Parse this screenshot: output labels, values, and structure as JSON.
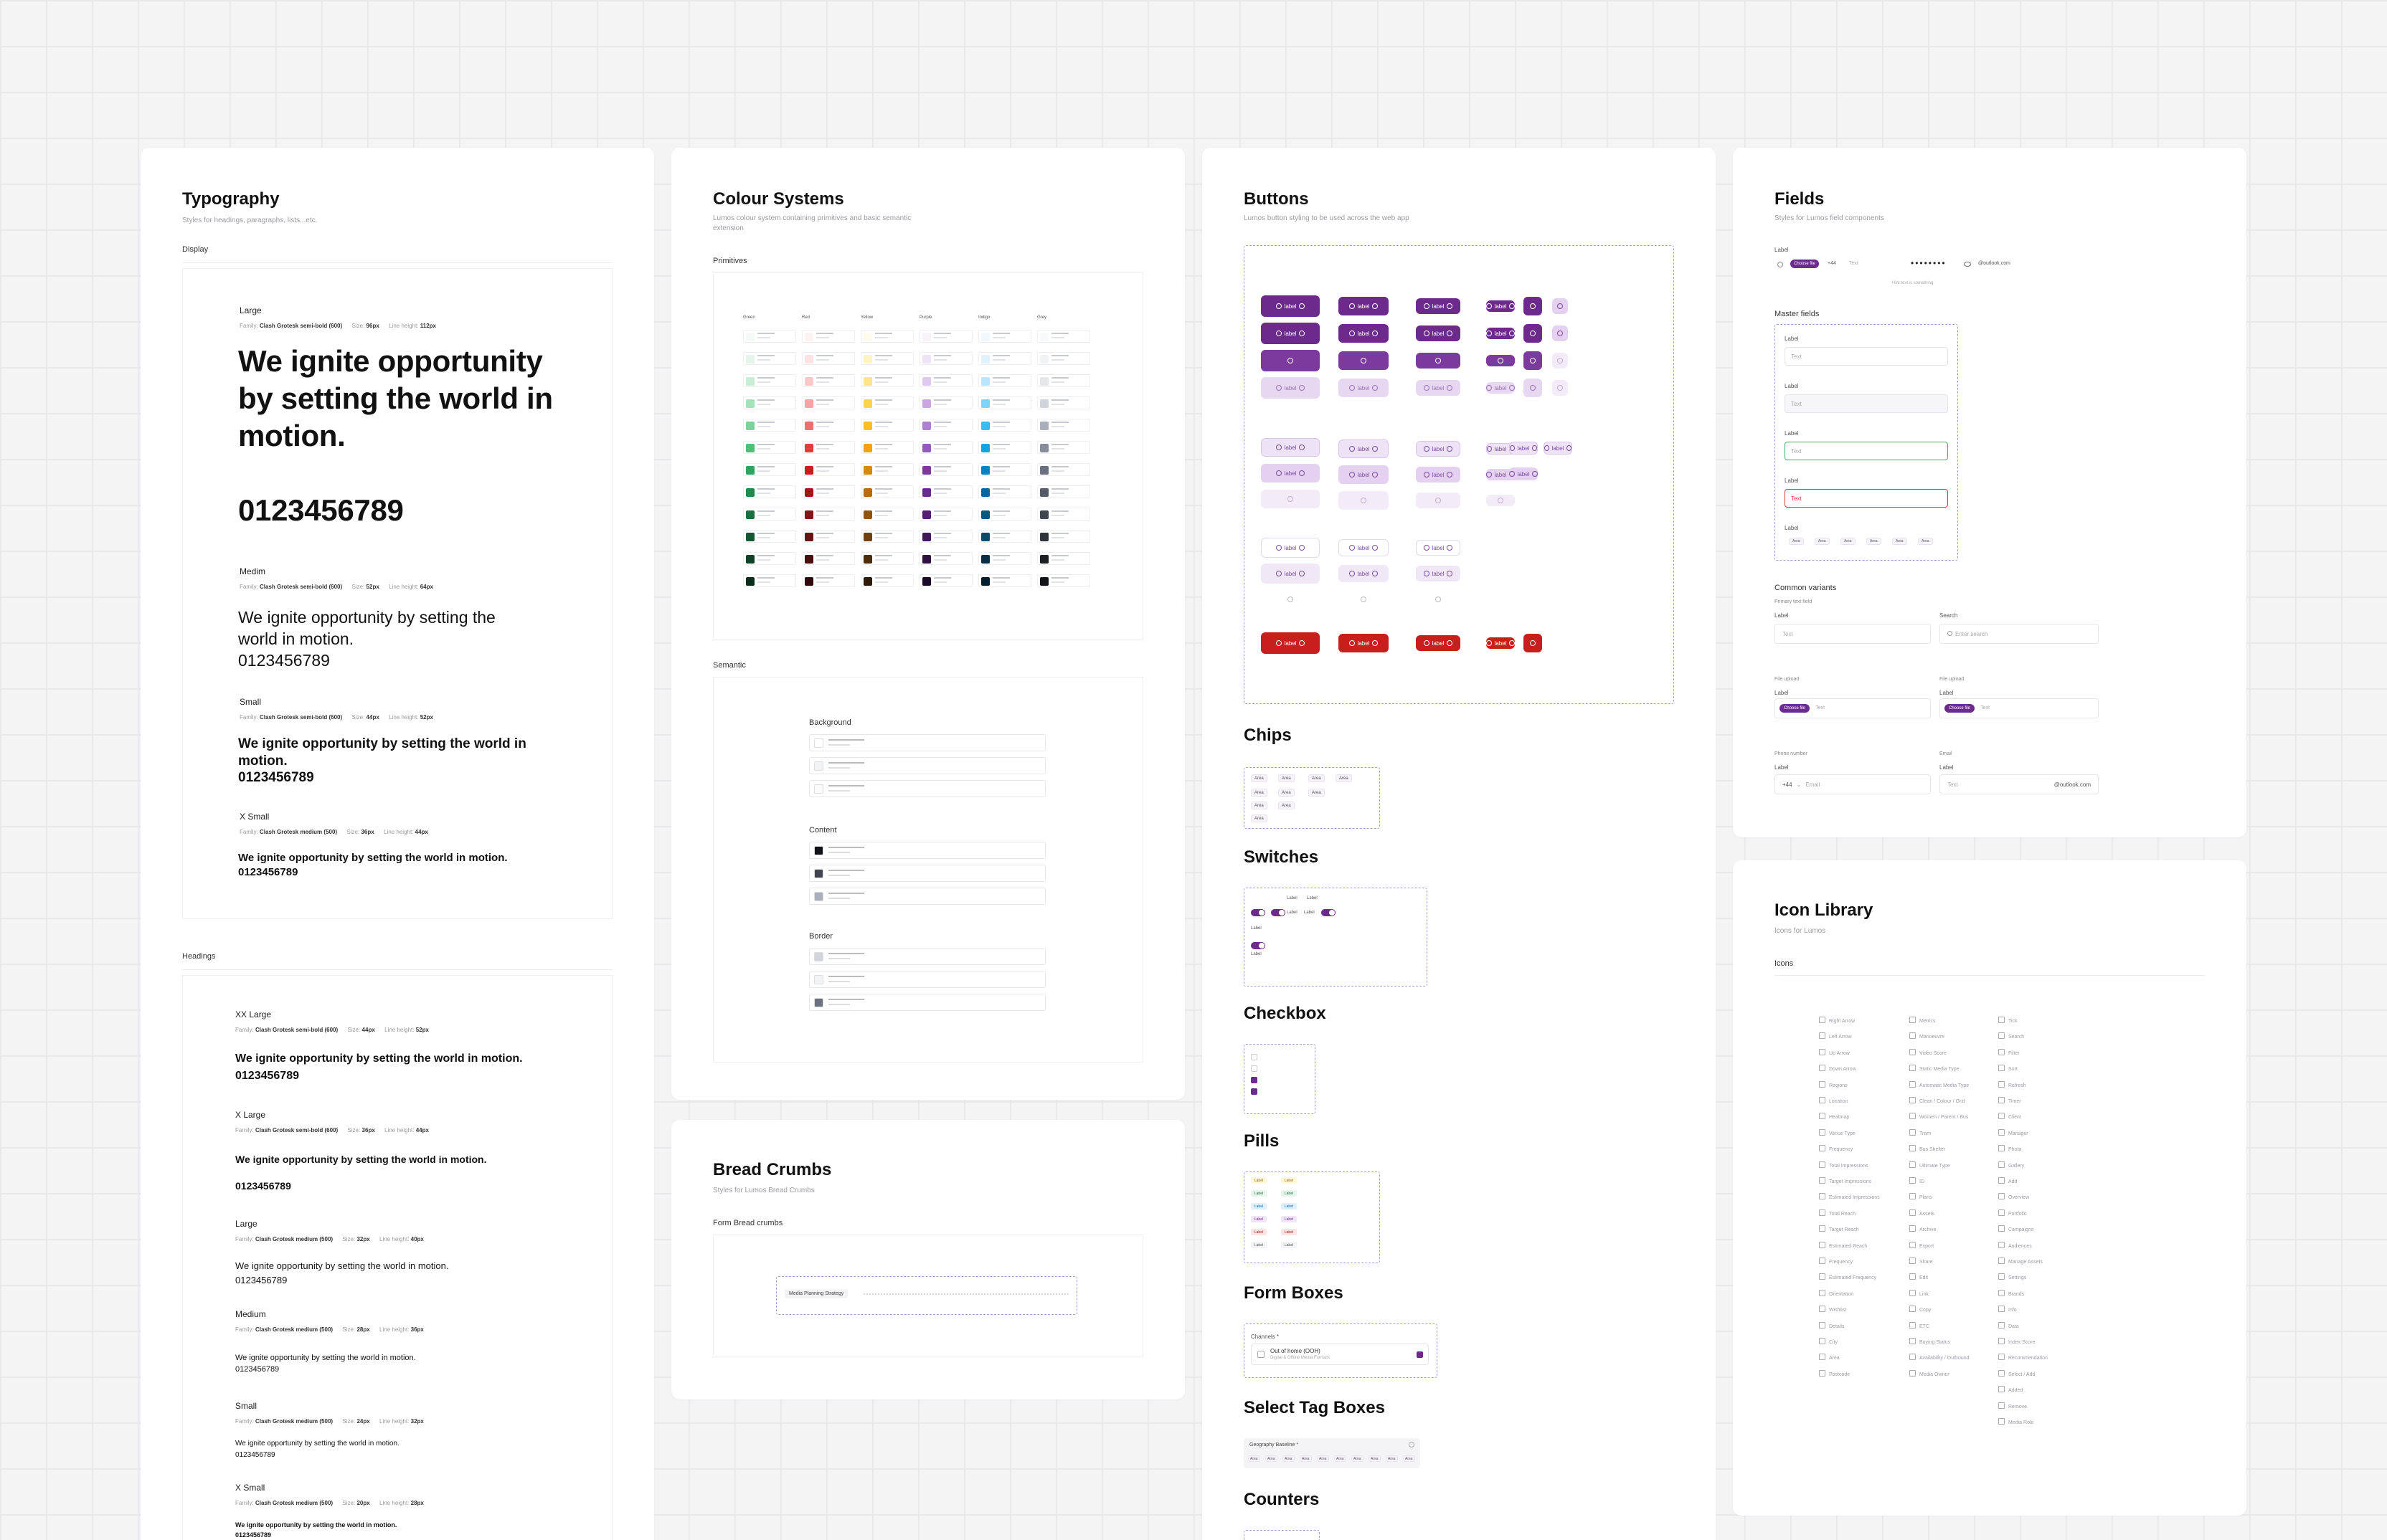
{
  "typography": {
    "title": "Typography",
    "subtitle": "Styles for headings, paragraphs, lists...etc.",
    "display_label": "Display",
    "headings_label": "Headings",
    "display": [
      {
        "name": "Large",
        "family": "Clash Grotesk semi-bold (600)",
        "size": "96px",
        "line": "112px",
        "sample": "We ignite opportunity by setting the world in motion.",
        "digits": "0123456789"
      },
      {
        "name": "Medim",
        "family": "Clash Grotesk semi-bold (600)",
        "size": "52px",
        "line": "64px",
        "sample": "We ignite opportunity by setting the world in motion.",
        "digits": "0123456789"
      },
      {
        "name": "Small",
        "family": "Clash Grotesk semi-bold (600)",
        "size": "44px",
        "line": "52px",
        "sample": "We ignite opportunity by setting the world in motion.",
        "digits": "0123456789"
      },
      {
        "name": "X Small",
        "family": "Clash Grotesk medium (500)",
        "size": "36px",
        "line": "44px",
        "sample": "We ignite opportunity by setting the world in motion.",
        "digits": "0123456789"
      }
    ],
    "headings": [
      {
        "name": "XX Large",
        "family": "Clash Grotesk semi-bold (600)",
        "size": "44px",
        "line": "52px",
        "sample": "We ignite opportunity by setting the world in motion.",
        "digits": "0123456789"
      },
      {
        "name": "X Large",
        "family": "Clash Grotesk semi-bold (600)",
        "size": "36px",
        "line": "44px",
        "sample": "We ignite opportunity by setting the world in motion.",
        "digits": "0123456789"
      },
      {
        "name": "Large",
        "family": "Clash Grotesk medium (500)",
        "size": "32px",
        "line": "40px",
        "sample": "We ignite opportunity by setting the world in motion.",
        "digits": "0123456789"
      },
      {
        "name": "Medium",
        "family": "Clash Grotesk medium (500)",
        "size": "28px",
        "line": "36px",
        "sample": "We ignite opportunity by setting the world in motion.",
        "digits": "0123456789"
      },
      {
        "name": "Small",
        "family": "Clash Grotesk medium (500)",
        "size": "24px",
        "line": "32px",
        "sample": "We ignite opportunity by setting the world in motion.",
        "digits": "0123456789"
      },
      {
        "name": "X Small",
        "family": "Clash Grotesk medium (500)",
        "size": "20px",
        "line": "28px",
        "sample": "We ignite opportunity by setting the world in motion.",
        "digits": "0123456789"
      }
    ],
    "family_prefix": "Family:",
    "size_prefix": "Size:",
    "line_prefix": "Line height:"
  },
  "colours": {
    "title": "Colour Systems",
    "subtitle": "Lumos colour system containing primitives and basic semantic extension",
    "primitives_label": "Primitives",
    "semantic_label": "Semantic",
    "palettes": [
      {
        "name": "Green",
        "shades": [
          "#f4fbf6",
          "#e3f6e9",
          "#c9eed5",
          "#a6e2b9",
          "#7dd29a",
          "#4fbf78",
          "#2ea45e",
          "#208a4d",
          "#1b6f40",
          "#155733",
          "#104227",
          "#0b2d1b"
        ]
      },
      {
        "name": "Red",
        "shades": [
          "#fef2f2",
          "#fde3e3",
          "#fbc9c9",
          "#f8a3a3",
          "#f06e6e",
          "#e43b3b",
          "#c81e1e",
          "#a21818",
          "#821616",
          "#651313",
          "#4a0f0f",
          "#2e0a0a"
        ]
      },
      {
        "name": "Yellow",
        "shades": [
          "#fffbea",
          "#fff3c4",
          "#fde68a",
          "#fcd34d",
          "#fbbf24",
          "#f0a30a",
          "#d6890a",
          "#b66d0c",
          "#8f5410",
          "#6e4111",
          "#4b2c0c",
          "#2e1b07"
        ]
      },
      {
        "name": "Purple",
        "shades": [
          "#f8f3fb",
          "#efe3f6",
          "#e0c9ee",
          "#cba6e2",
          "#b07fd2",
          "#9458bf",
          "#7d3a9e",
          "#6b2a8c",
          "#561f72",
          "#42185a",
          "#2e1041",
          "#1c0a29"
        ]
      },
      {
        "name": "Indigo",
        "shades": [
          "#f0f9ff",
          "#dff2fe",
          "#b9e6fd",
          "#7fd3fb",
          "#38bdf3",
          "#0ea5e0",
          "#0284c2",
          "#03699c",
          "#07587f",
          "#0c4a69",
          "#082f46",
          "#051e2e"
        ]
      },
      {
        "name": "Grey",
        "shades": [
          "#f9fafb",
          "#f2f3f5",
          "#e5e7eb",
          "#d1d5db",
          "#a9afbb",
          "#868c99",
          "#6b7180",
          "#555b69",
          "#40454f",
          "#2e323a",
          "#1d2026",
          "#111318"
        ]
      }
    ],
    "semantic_groups": [
      {
        "name": "Background",
        "swatches": [
          "#ffffff",
          "#f2f3f5",
          "#f9fafb"
        ]
      },
      {
        "name": "Content",
        "swatches": [
          "#111318",
          "#40454f",
          "#a9afbb"
        ]
      },
      {
        "name": "Border",
        "swatches": [
          "#d1d5db",
          "#f2f3f5",
          "#6b7180"
        ]
      }
    ]
  },
  "breadcrumbs": {
    "title": "Bread Crumbs",
    "subtitle": "Styles for Lumos Bread Crumbs",
    "section": "Form Bread crumbs",
    "active": "Media Planning Strategy"
  },
  "buttons": {
    "title": "Buttons",
    "subtitle": "Lumos button styling to be used across the web app",
    "label": "label",
    "chips_title": "Chips",
    "chip_label": "Area",
    "switches_title": "Switches",
    "switch_label": "Label",
    "checkbox_title": "Checkbox",
    "pills_title": "Pills",
    "pill_label": "Label",
    "formboxes_title": "Form Boxes",
    "channels_label": "Channels *",
    "ooh_label": "Out of home (OOH)",
    "ooh_sub": "Digital & Offline Media Formats",
    "selecttag_title": "Select Tag Boxes",
    "geo_label": "Geography Baseline *",
    "counters_title": "Counters",
    "colors": {
      "primary": "#6b2a8c",
      "danger": "#c81e1e"
    }
  },
  "fields": {
    "title": "Fields",
    "subtitle": "Styles for Lumos field components",
    "top_label": "Label",
    "choose_file": "Choose file",
    "text": "Text",
    "phone_prefix": "+44",
    "email_suffix": "@outlook.com",
    "hint": "Hint text is something",
    "master_label": "Master fields",
    "field_label": "Label",
    "common_label": "Common variants",
    "primary_text": "Primary text field",
    "search_label": "Search",
    "search_placeholder": "Enter search",
    "file_upload": "File upload",
    "phone_number": "Phone number",
    "email": "Email",
    "email_placeholder": "Email"
  },
  "icons": {
    "title": "Icon Library",
    "subtitle": "Icons for Lumos",
    "section": "Icons",
    "col1": [
      "Right Arrow",
      "Left Arrow",
      "Up Arrow",
      "Down Arrow",
      "Regions",
      "Location",
      "Heatmap",
      "Venue Type",
      "Frequency",
      "Total Impressions",
      "Target Impressions",
      "Estimated Impressions",
      "Total Reach",
      "Target Reach",
      "Estimated Reach",
      "Frequency",
      "Estimated Frequency",
      "Orientation",
      "Wishlist",
      "Details",
      "City",
      "Area",
      "Postcode"
    ],
    "col2": [
      "Metrics",
      "Manoeuvre",
      "Video Score",
      "Static Media Type",
      "Automatic Media Type",
      "Clean / Colour / Grid",
      "Women / Parent / Bus",
      "Tram",
      "Bus Shelter",
      "Ultimate Type",
      "ID",
      "Plans",
      "Assets",
      "Archive",
      "Export",
      "Share",
      "Edit",
      "Link",
      "Copy",
      "ETC",
      "Buying Status",
      "Availability / Outbound",
      "Media Owner"
    ],
    "col3": [
      "Tick",
      "Search",
      "Filter",
      "Sort",
      "Refresh",
      "Timer",
      "Client",
      "Manager",
      "Photo",
      "Gallery",
      "Add",
      "Overview",
      "Portfolio",
      "Campaigns",
      "Audiences",
      "Manage Assets",
      "Settings",
      "Brands",
      "Info",
      "Data",
      "Index Score",
      "Recommendation",
      "Select / Add",
      "Added",
      "Remove",
      "Media Role"
    ]
  }
}
